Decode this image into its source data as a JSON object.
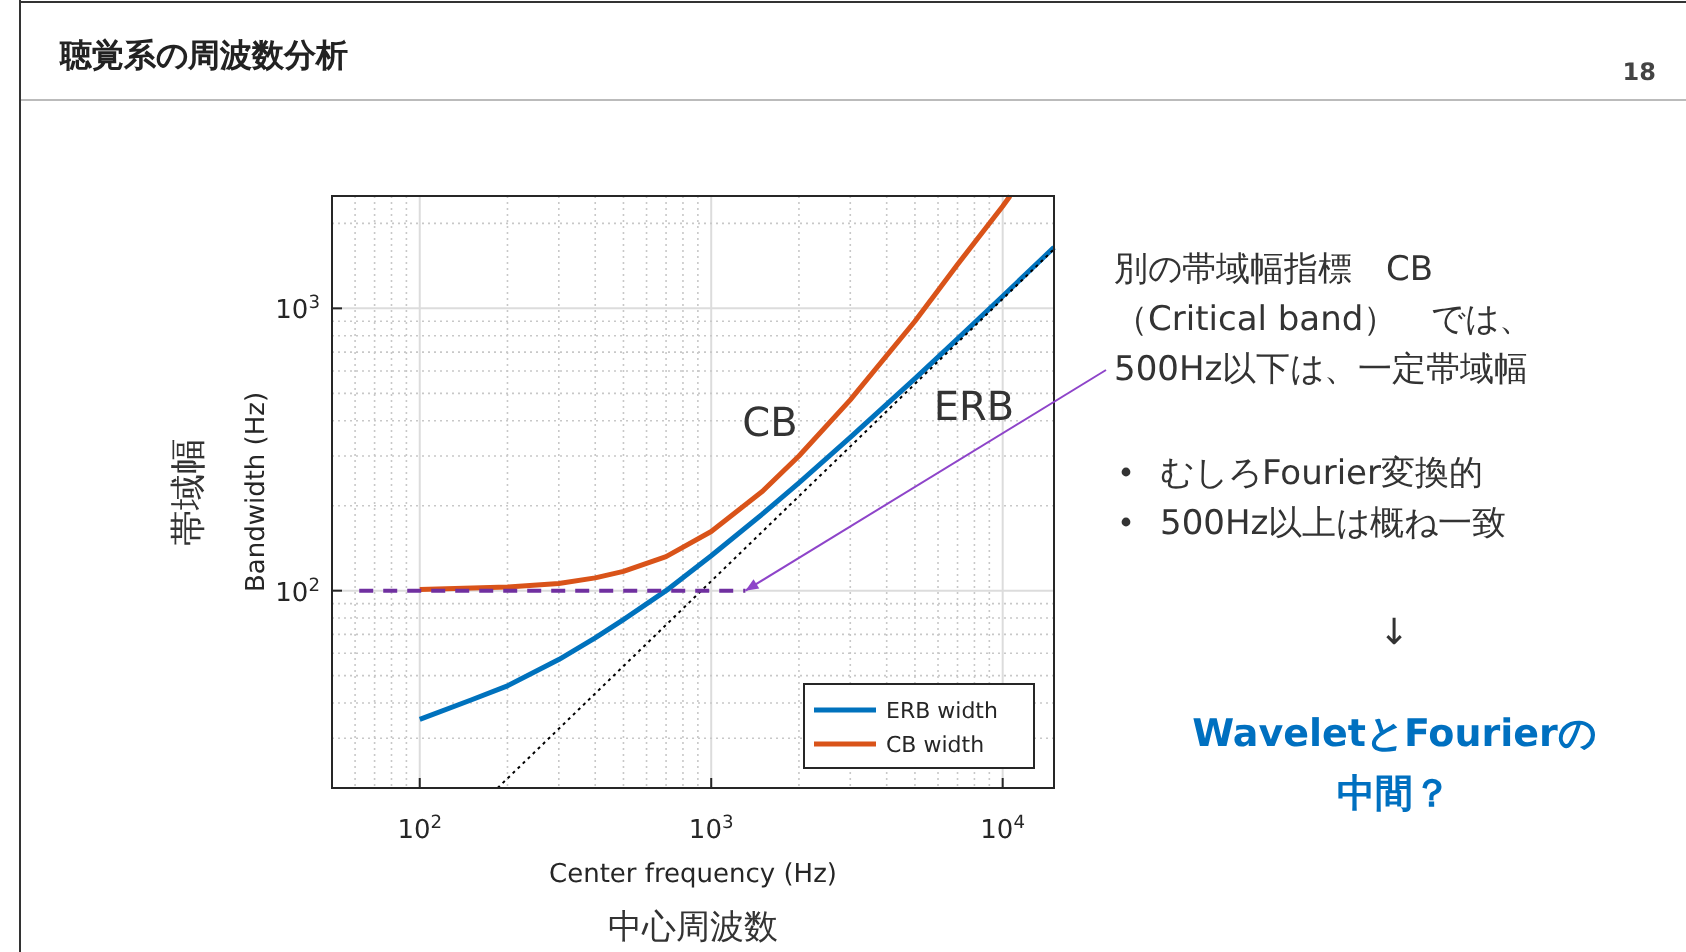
{
  "chart_data": {
    "type": "line",
    "title": "聴覚系の周波数分析",
    "xlabel": "Center frequency (Hz)",
    "ylabel": "Bandwidth (Hz)",
    "log": "xy",
    "grid": true,
    "legend": "bottom right",
    "xlim": [
      50,
      15000
    ],
    "ylim": [
      20,
      2500
    ],
    "xticks": [
      {
        "value": 100,
        "label": "10$^{2}$"
      },
      {
        "value": 1000,
        "label": "10$^{3}$"
      },
      {
        "value": 10000,
        "label": "10$^{4}$"
      }
    ],
    "yticks": [
      {
        "value": 100,
        "label": "10$^{2}$"
      },
      {
        "value": 1000,
        "label": "10$^{3}$"
      }
    ],
    "series": [
      {
        "name": "ERB width",
        "color": "#0072bd",
        "line_style": "solid",
        "x": [
          100,
          150,
          200,
          300,
          400,
          500,
          700,
          1000,
          1500,
          2000,
          3000,
          5000,
          7000,
          10000,
          15000
        ],
        "values": [
          35,
          41,
          46,
          57,
          68,
          79,
          100,
          133,
          187,
          241,
          349,
          564,
          780,
          1104,
          1644
        ]
      },
      {
        "name": "CB width",
        "color": "#d95319",
        "line_style": "solid",
        "x": [
          100,
          200,
          300,
          400,
          500,
          700,
          1000,
          1500,
          2000,
          3000,
          5000,
          7000,
          10000,
          10600
        ],
        "values": [
          101,
          103,
          106,
          111,
          117,
          132,
          162,
          225,
          300,
          474,
          900,
          1430,
          2300,
          2500
        ]
      },
      {
        "color": "#000000",
        "line_style": "dotted",
        "x": [
          185,
          15000
        ],
        "values": [
          20,
          1620
        ]
      },
      {
        "color": "#7030a0",
        "line_style": "dashed",
        "x": [
          62,
          1310
        ],
        "values": [
          100,
          100
        ]
      }
    ],
    "annotations": [
      "CB",
      "ERB",
      {
        "text": "別の帯域幅指標　CB\n（Critical band）　では、\n500Hz以下は、一定帯域幅",
        "x": 1310,
        "y": 100
      },
      "むしろFourier変換的",
      "500Hz以上は概ね一致",
      "↓",
      "WaveletとFourierの中間？",
      "帯域幅",
      "中心周波数",
      "18"
    ]
  }
}
